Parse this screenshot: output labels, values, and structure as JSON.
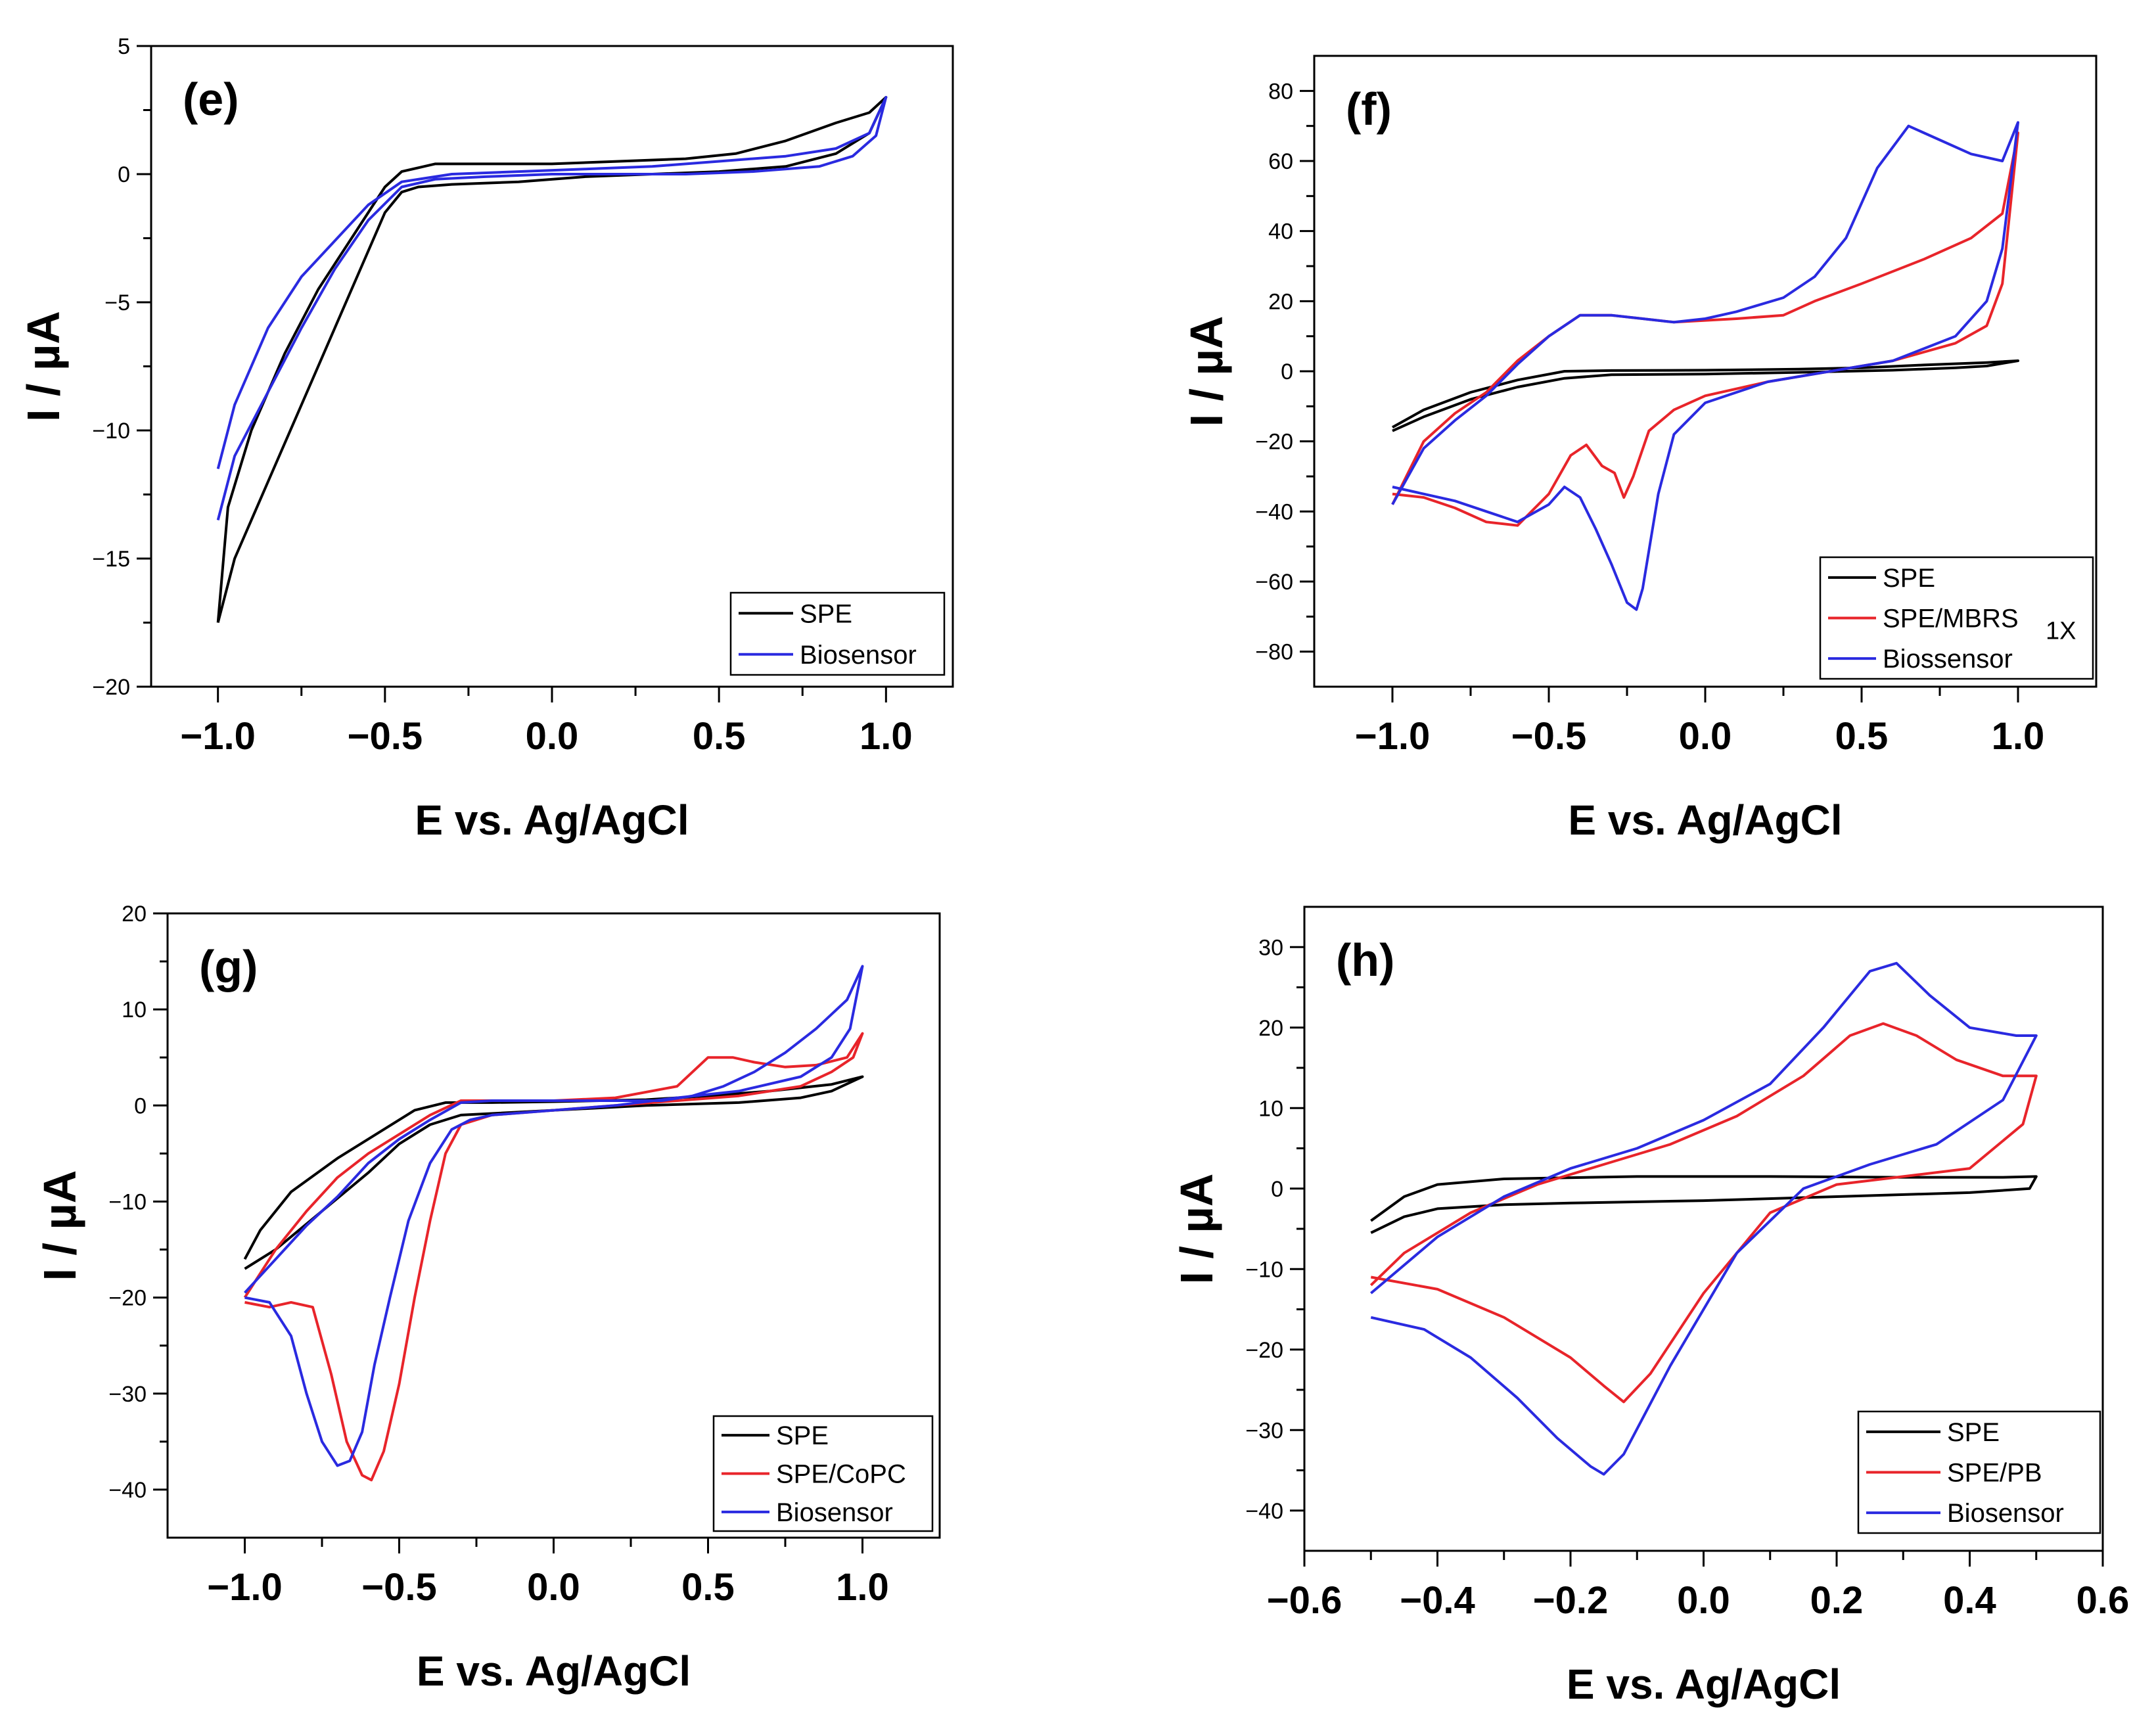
{
  "figure": {
    "xlabel": "E vs. Ag/AgCl",
    "ylabel": "I / µA"
  },
  "colors": {
    "SPE": "#000000",
    "red": "#e8242a",
    "blue": "#2a2ae0"
  },
  "chart_data": [
    {
      "type": "line",
      "title": "(e)",
      "xlabel": "E vs. Ag/AgCl",
      "ylabel": "I / µA",
      "xlim": [
        -1.2,
        1.2
      ],
      "ylim": [
        -20,
        5
      ],
      "xticks": [
        -1.0,
        -0.5,
        0.0,
        0.5,
        1.0
      ],
      "xtick_labels": [
        "−1.0",
        "−0.5",
        "0.0",
        "0.5",
        "1.0"
      ],
      "yticks": [
        -20,
        -15,
        -10,
        -5,
        0,
        5
      ],
      "ytick_labels": [
        "−20",
        "−15",
        "−10",
        "−5",
        "0",
        "5"
      ],
      "legend": {
        "position": "bottom-right",
        "entries": [
          "SPE",
          "Biosensor"
        ]
      },
      "series": [
        {
          "name": "SPE",
          "color": "#000000",
          "x": [
            -1.0,
            -0.95,
            -0.85,
            -0.75,
            -0.65,
            -0.55,
            -0.5,
            -0.45,
            -0.4,
            -0.3,
            -0.1,
            0.1,
            0.3,
            0.5,
            0.7,
            0.85,
            0.95,
            1.0,
            0.95,
            0.85,
            0.7,
            0.55,
            0.4,
            0.2,
            0.0,
            -0.2,
            -0.35,
            -0.45,
            -0.5,
            -0.55,
            -0.6,
            -0.7,
            -0.8,
            -0.9,
            -0.97,
            -1.0
          ],
          "y": [
            -17.5,
            -15.0,
            -12.0,
            -9.0,
            -6.0,
            -3.0,
            -1.5,
            -0.7,
            -0.5,
            -0.4,
            -0.3,
            -0.1,
            0.0,
            0.1,
            0.3,
            0.8,
            1.6,
            3.0,
            2.4,
            2.0,
            1.3,
            0.8,
            0.6,
            0.5,
            0.4,
            0.4,
            0.4,
            0.1,
            -0.5,
            -1.5,
            -2.5,
            -4.5,
            -7.0,
            -10.0,
            -13.0,
            -17.5
          ]
        },
        {
          "name": "Biosensor",
          "color": "#2a2ae0",
          "x": [
            -1.0,
            -0.95,
            -0.85,
            -0.75,
            -0.65,
            -0.55,
            -0.45,
            -0.35,
            -0.2,
            0.0,
            0.2,
            0.4,
            0.6,
            0.8,
            0.9,
            0.97,
            1.0,
            0.95,
            0.85,
            0.7,
            0.5,
            0.3,
            0.1,
            -0.1,
            -0.3,
            -0.45,
            -0.55,
            -0.65,
            -0.75,
            -0.85,
            -0.95,
            -1.0
          ],
          "y": [
            -13.5,
            -11.0,
            -8.5,
            -6.0,
            -3.7,
            -1.8,
            -0.5,
            -0.2,
            -0.1,
            0.0,
            0.0,
            0.0,
            0.1,
            0.3,
            0.7,
            1.5,
            3.0,
            1.6,
            1.0,
            0.7,
            0.5,
            0.3,
            0.2,
            0.1,
            0.0,
            -0.3,
            -1.2,
            -2.6,
            -4.0,
            -6.0,
            -9.0,
            -11.5
          ]
        }
      ]
    },
    {
      "type": "line",
      "title": "(f)",
      "xlabel": "E vs. Ag/AgCl",
      "ylabel": "I / µA",
      "xlim": [
        -1.25,
        1.25
      ],
      "ylim": [
        -90,
        90
      ],
      "xticks": [
        -1.0,
        -0.5,
        0.0,
        0.5,
        1.0
      ],
      "xtick_labels": [
        "−1.0",
        "−0.5",
        "0.0",
        "0.5",
        "1.0"
      ],
      "yticks": [
        -80,
        -60,
        -40,
        -20,
        0,
        20,
        40,
        60,
        80
      ],
      "ytick_labels": [
        "−80",
        "−60",
        "−40",
        "−20",
        "0",
        "20",
        "40",
        "60",
        "80"
      ],
      "legend": {
        "position": "bottom-right",
        "entries": [
          "SPE",
          "SPE/MBRS",
          "Biossensor"
        ],
        "note": "1X"
      },
      "series": [
        {
          "name": "SPE",
          "color": "#000000",
          "x": [
            -1.0,
            -0.9,
            -0.75,
            -0.6,
            -0.45,
            -0.3,
            0.0,
            0.3,
            0.6,
            0.8,
            0.9,
            1.0,
            0.9,
            0.7,
            0.5,
            0.3,
            0.0,
            -0.3,
            -0.45,
            -0.6,
            -0.75,
            -0.9,
            -1.0
          ],
          "y": [
            -17.0,
            -13.0,
            -8.0,
            -4.5,
            -2.0,
            -1.0,
            -0.8,
            -0.3,
            0.3,
            1.0,
            1.5,
            3.0,
            2.5,
            1.8,
            1.0,
            0.6,
            0.3,
            0.2,
            0.0,
            -2.5,
            -6.0,
            -11.0,
            -16.0
          ]
        },
        {
          "name": "SPE/MBRS",
          "color": "#e8242a",
          "x": [
            -1.0,
            -0.9,
            -0.8,
            -0.7,
            -0.6,
            -0.5,
            -0.43,
            -0.38,
            -0.33,
            -0.29,
            -0.26,
            -0.23,
            -0.18,
            -0.1,
            0.0,
            0.2,
            0.4,
            0.6,
            0.8,
            0.9,
            0.95,
            1.0,
            0.95,
            0.85,
            0.7,
            0.5,
            0.35,
            0.25,
            0.1,
            -0.1,
            -0.2,
            -0.3,
            -0.4,
            -0.5,
            -0.6,
            -0.7,
            -0.8,
            -0.9,
            -1.0
          ],
          "y": [
            -35.0,
            -36.0,
            -39.0,
            -43.0,
            -44.0,
            -35.0,
            -24.0,
            -21.0,
            -27.0,
            -29.0,
            -36.0,
            -30.0,
            -17.0,
            -11.0,
            -7.0,
            -3.0,
            0.0,
            3.0,
            8.0,
            13.0,
            25.0,
            68.0,
            45.0,
            38.0,
            32.0,
            25.0,
            20.0,
            16.0,
            15.0,
            14.0,
            15.0,
            16.0,
            16.0,
            10.0,
            3.0,
            -6.0,
            -12.0,
            -20.0,
            -38.0
          ]
        },
        {
          "name": "Biossensor",
          "color": "#2a2ae0",
          "x": [
            -1.0,
            -0.9,
            -0.8,
            -0.7,
            -0.6,
            -0.5,
            -0.45,
            -0.4,
            -0.35,
            -0.3,
            -0.25,
            -0.22,
            -0.2,
            -0.15,
            -0.1,
            0.0,
            0.2,
            0.4,
            0.6,
            0.8,
            0.9,
            0.95,
            1.0,
            0.95,
            0.85,
            0.75,
            0.65,
            0.55,
            0.45,
            0.35,
            0.25,
            0.1,
            0.0,
            -0.1,
            -0.2,
            -0.3,
            -0.4,
            -0.5,
            -0.6,
            -0.7,
            -0.8,
            -0.9,
            -1.0
          ],
          "y": [
            -33.0,
            -35.0,
            -37.0,
            -40.0,
            -43.0,
            -38.0,
            -33.0,
            -36.0,
            -45.0,
            -55.0,
            -66.0,
            -68.0,
            -62.0,
            -35.0,
            -18.0,
            -9.0,
            -3.0,
            0.0,
            3.0,
            10.0,
            20.0,
            35.0,
            71.0,
            60.0,
            62.0,
            66.0,
            70.0,
            58.0,
            38.0,
            27.0,
            21.0,
            17.0,
            15.0,
            14.0,
            15.0,
            16.0,
            16.0,
            10.0,
            2.0,
            -7.0,
            -14.0,
            -22.0,
            -38.0
          ]
        }
      ]
    },
    {
      "type": "line",
      "title": "(g)",
      "xlabel": "E vs. Ag/AgCl",
      "ylabel": "I / µA",
      "xlim": [
        -1.25,
        1.25
      ],
      "ylim": [
        -45,
        20
      ],
      "xticks": [
        -1.0,
        -0.5,
        0.0,
        0.5,
        1.0
      ],
      "xtick_labels": [
        "−1.0",
        "−0.5",
        "0.0",
        "0.5",
        "1.0"
      ],
      "yticks": [
        -40,
        -30,
        -20,
        -10,
        0,
        10,
        20
      ],
      "ytick_labels": [
        "−40",
        "−30",
        "−20",
        "−10",
        "0",
        "10",
        "20"
      ],
      "legend": {
        "position": "bottom-right",
        "entries": [
          "SPE",
          "SPE/CoPC",
          "Biosensor"
        ]
      },
      "series": [
        {
          "name": "SPE",
          "color": "#000000",
          "x": [
            -1.0,
            -0.9,
            -0.75,
            -0.6,
            -0.5,
            -0.4,
            -0.3,
            0.0,
            0.3,
            0.6,
            0.8,
            0.9,
            1.0,
            0.9,
            0.7,
            0.5,
            0.3,
            0.0,
            -0.2,
            -0.35,
            -0.45,
            -0.55,
            -0.7,
            -0.85,
            -0.95,
            -1.0
          ],
          "y": [
            -17.0,
            -15.0,
            -11.0,
            -7.0,
            -4.0,
            -2.0,
            -1.0,
            -0.5,
            0.0,
            0.3,
            0.8,
            1.5,
            3.0,
            2.2,
            1.5,
            1.0,
            0.6,
            0.4,
            0.3,
            0.3,
            -0.5,
            -2.5,
            -5.5,
            -9.0,
            -13.0,
            -16.0
          ]
        },
        {
          "name": "SPE/CoPC",
          "color": "#e8242a",
          "x": [
            -1.0,
            -0.92,
            -0.85,
            -0.78,
            -0.72,
            -0.67,
            -0.62,
            -0.59,
            -0.55,
            -0.5,
            -0.45,
            -0.4,
            -0.35,
            -0.3,
            -0.2,
            0.0,
            0.2,
            0.4,
            0.6,
            0.8,
            0.9,
            0.97,
            1.0,
            0.95,
            0.85,
            0.75,
            0.65,
            0.58,
            0.5,
            0.4,
            0.2,
            0.0,
            -0.2,
            -0.3,
            -0.4,
            -0.5,
            -0.6,
            -0.7,
            -0.8,
            -0.9,
            -1.0
          ],
          "y": [
            -20.5,
            -21.0,
            -20.5,
            -21.0,
            -28.0,
            -35.0,
            -38.5,
            -39.0,
            -36.0,
            -29.0,
            -20.0,
            -12.0,
            -5.0,
            -2.0,
            -1.0,
            -0.5,
            0.0,
            0.5,
            1.0,
            2.0,
            3.5,
            5.0,
            7.5,
            5.0,
            4.2,
            4.0,
            4.5,
            5.0,
            5.0,
            2.0,
            0.8,
            0.5,
            0.5,
            0.5,
            -1.0,
            -3.0,
            -5.0,
            -7.5,
            -11.0,
            -15.0,
            -20.0
          ]
        },
        {
          "name": "Biosensor",
          "color": "#2a2ae0",
          "x": [
            -1.0,
            -0.92,
            -0.85,
            -0.8,
            -0.75,
            -0.7,
            -0.66,
            -0.62,
            -0.58,
            -0.53,
            -0.47,
            -0.4,
            -0.33,
            -0.27,
            -0.2,
            0.0,
            0.2,
            0.4,
            0.6,
            0.8,
            0.9,
            0.96,
            1.0,
            0.95,
            0.85,
            0.75,
            0.65,
            0.55,
            0.45,
            0.35,
            0.2,
            0.0,
            -0.2,
            -0.3,
            -0.4,
            -0.5,
            -0.6,
            -0.7,
            -0.8,
            -0.9,
            -1.0
          ],
          "y": [
            -20.0,
            -20.5,
            -24.0,
            -30.0,
            -35.0,
            -37.5,
            -37.0,
            -34.0,
            -27.0,
            -20.0,
            -12.0,
            -6.0,
            -2.5,
            -1.5,
            -1.0,
            -0.5,
            0.0,
            0.8,
            1.5,
            3.0,
            5.0,
            8.0,
            14.5,
            11.0,
            8.0,
            5.5,
            3.5,
            2.0,
            1.0,
            0.5,
            0.5,
            0.5,
            0.5,
            0.3,
            -1.5,
            -3.5,
            -6.0,
            -9.5,
            -12.5,
            -16.0,
            -19.5
          ]
        }
      ]
    },
    {
      "type": "line",
      "title": "(h)",
      "xlabel": "E vs. Ag/AgCl",
      "ylabel": "I / µA",
      "xlim": [
        -0.6,
        0.6
      ],
      "ylim": [
        -45,
        35
      ],
      "xticks": [
        -0.6,
        -0.4,
        -0.2,
        0.0,
        0.2,
        0.4,
        0.6
      ],
      "xtick_labels": [
        "−0.6",
        "−0.4",
        "−0.2",
        "0.0",
        "0.2",
        "0.4",
        "0.6"
      ],
      "yticks": [
        -40,
        -30,
        -20,
        -10,
        0,
        10,
        20,
        30
      ],
      "ytick_labels": [
        "−40",
        "−30",
        "−20",
        "−10",
        "0",
        "10",
        "20",
        "30"
      ],
      "legend": {
        "position": "bottom-right",
        "entries": [
          "SPE",
          "SPE/PB",
          "Biosensor"
        ]
      },
      "series": [
        {
          "name": "SPE",
          "color": "#000000",
          "x": [
            -0.5,
            -0.45,
            -0.4,
            -0.3,
            -0.2,
            0.0,
            0.2,
            0.4,
            0.49,
            0.5,
            0.45,
            0.3,
            0.1,
            -0.1,
            -0.3,
            -0.4,
            -0.45,
            -0.5
          ],
          "y": [
            -5.5,
            -3.5,
            -2.5,
            -2.0,
            -1.8,
            -1.5,
            -1.0,
            -0.5,
            0.0,
            1.5,
            1.4,
            1.4,
            1.5,
            1.5,
            1.2,
            0.5,
            -1.0,
            -4.0
          ]
        },
        {
          "name": "SPE/PB",
          "color": "#e8242a",
          "x": [
            -0.5,
            -0.4,
            -0.3,
            -0.2,
            -0.15,
            -0.12,
            -0.08,
            0.0,
            0.1,
            0.2,
            0.3,
            0.4,
            0.48,
            0.5,
            0.45,
            0.38,
            0.32,
            0.27,
            0.22,
            0.15,
            0.05,
            -0.05,
            -0.15,
            -0.25,
            -0.35,
            -0.45,
            -0.5
          ],
          "y": [
            -11.0,
            -12.5,
            -16.0,
            -21.0,
            -24.5,
            -26.5,
            -23.0,
            -13.0,
            -3.0,
            0.5,
            1.5,
            2.5,
            8.0,
            14.0,
            14.0,
            16.0,
            19.0,
            20.5,
            19.0,
            14.0,
            9.0,
            5.5,
            3.0,
            0.5,
            -3.0,
            -8.0,
            -12.0
          ]
        },
        {
          "name": "Biosensor",
          "color": "#2a2ae0",
          "x": [
            -0.5,
            -0.42,
            -0.35,
            -0.28,
            -0.22,
            -0.17,
            -0.15,
            -0.12,
            -0.05,
            0.05,
            0.15,
            0.25,
            0.35,
            0.45,
            0.5,
            0.47,
            0.4,
            0.34,
            0.29,
            0.25,
            0.18,
            0.1,
            0.0,
            -0.1,
            -0.2,
            -0.3,
            -0.4,
            -0.5
          ],
          "y": [
            -16.0,
            -17.5,
            -21.0,
            -26.0,
            -31.0,
            -34.5,
            -35.5,
            -33.0,
            -22.0,
            -8.0,
            0.0,
            3.0,
            5.5,
            11.0,
            19.0,
            19.0,
            20.0,
            24.0,
            28.0,
            27.0,
            20.0,
            13.0,
            8.5,
            5.0,
            2.5,
            -1.0,
            -6.0,
            -13.0
          ]
        }
      ]
    }
  ]
}
